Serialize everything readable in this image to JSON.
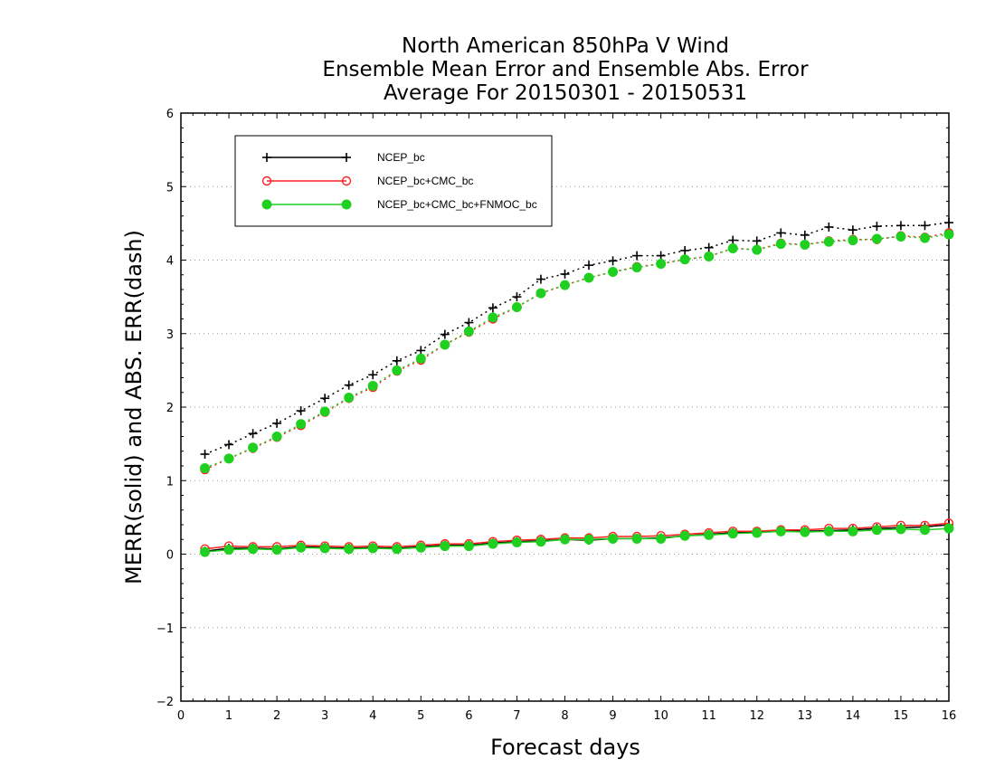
{
  "chart_data": {
    "type": "line",
    "title": [
      "North American 850hPa V Wind",
      "Ensemble Mean Error and Ensemble Abs. Error",
      "Average For 20150301 - 20150531"
    ],
    "xlabel": "Forecast days",
    "ylabel": "MERR(solid) and ABS. ERR(dash)",
    "xlim": [
      0,
      16
    ],
    "ylim": [
      -2,
      6
    ],
    "xticks": [
      0,
      1,
      2,
      3,
      4,
      5,
      6,
      7,
      8,
      9,
      10,
      11,
      12,
      13,
      14,
      15,
      16
    ],
    "yticks": [
      -2,
      -1,
      0,
      1,
      2,
      3,
      4,
      5,
      6
    ],
    "grid": "horizontal dotted",
    "legend_position": "top-left",
    "x": [
      0.5,
      1,
      1.5,
      2,
      2.5,
      3,
      3.5,
      4,
      4.5,
      5,
      5.5,
      6,
      6.5,
      7,
      7.5,
      8,
      8.5,
      9,
      9.5,
      10,
      10.5,
      11,
      11.5,
      12,
      12.5,
      13,
      13.5,
      14,
      14.5,
      15,
      15.5,
      16
    ],
    "series": [
      {
        "name": "NCEP_bc",
        "color": "#000000",
        "marker": "plus",
        "merr": [
          0.04,
          0.08,
          0.08,
          0.07,
          0.1,
          0.09,
          0.08,
          0.09,
          0.08,
          0.1,
          0.12,
          0.12,
          0.15,
          0.17,
          0.18,
          0.2,
          0.19,
          0.21,
          0.21,
          0.22,
          0.25,
          0.27,
          0.29,
          0.3,
          0.31,
          0.31,
          0.32,
          0.33,
          0.35,
          0.36,
          0.37,
          0.4
        ],
        "abs_err": [
          1.36,
          1.49,
          1.64,
          1.78,
          1.95,
          2.12,
          2.3,
          2.44,
          2.63,
          2.77,
          2.99,
          3.15,
          3.35,
          3.5,
          3.74,
          3.81,
          3.93,
          3.99,
          4.06,
          4.06,
          4.13,
          4.17,
          4.27,
          4.26,
          4.37,
          4.34,
          4.45,
          4.41,
          4.46,
          4.47,
          4.47,
          4.51
        ]
      },
      {
        "name": "NCEP_bc+CMC_bc",
        "color": "#ff2020",
        "marker": "open-circle",
        "merr": [
          0.07,
          0.11,
          0.1,
          0.1,
          0.12,
          0.11,
          0.1,
          0.11,
          0.1,
          0.12,
          0.14,
          0.14,
          0.17,
          0.19,
          0.2,
          0.22,
          0.22,
          0.24,
          0.24,
          0.25,
          0.27,
          0.29,
          0.31,
          0.31,
          0.33,
          0.33,
          0.35,
          0.35,
          0.37,
          0.39,
          0.39,
          0.42
        ],
        "abs_err": [
          1.15,
          1.3,
          1.44,
          1.59,
          1.75,
          1.93,
          2.12,
          2.27,
          2.49,
          2.64,
          2.85,
          3.02,
          3.2,
          3.36,
          3.55,
          3.66,
          3.76,
          3.84,
          3.91,
          3.95,
          4.01,
          4.05,
          4.16,
          4.14,
          4.23,
          4.21,
          4.26,
          4.28,
          4.28,
          4.33,
          4.31,
          4.37
        ]
      },
      {
        "name": "NCEP_bc+CMC_bc+FNMOC_bc",
        "color": "#20d020",
        "marker": "filled-circle",
        "merr": [
          0.03,
          0.06,
          0.07,
          0.06,
          0.09,
          0.08,
          0.07,
          0.08,
          0.07,
          0.09,
          0.11,
          0.11,
          0.14,
          0.16,
          0.17,
          0.2,
          0.2,
          0.21,
          0.21,
          0.21,
          0.25,
          0.26,
          0.28,
          0.29,
          0.31,
          0.3,
          0.31,
          0.31,
          0.33,
          0.34,
          0.33,
          0.35
        ],
        "abs_err": [
          1.17,
          1.3,
          1.45,
          1.6,
          1.77,
          1.94,
          2.13,
          2.29,
          2.5,
          2.66,
          2.85,
          3.03,
          3.22,
          3.36,
          3.55,
          3.66,
          3.76,
          3.84,
          3.9,
          3.95,
          4.01,
          4.05,
          4.16,
          4.14,
          4.22,
          4.21,
          4.25,
          4.27,
          4.29,
          4.32,
          4.3,
          4.35
        ]
      }
    ]
  }
}
